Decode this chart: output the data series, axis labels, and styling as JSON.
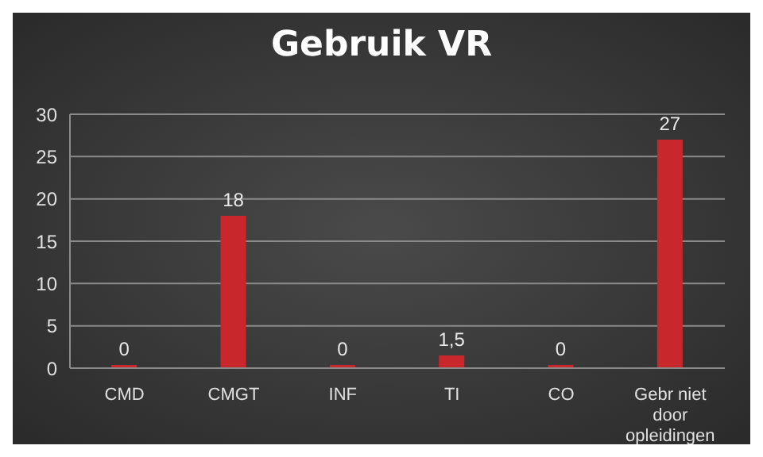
{
  "chart_data": {
    "type": "bar",
    "title": "Gebruik VR",
    "categories": [
      "CMD",
      "CMGT",
      "INF",
      "TI",
      "CO",
      "Gebr niet door opleidingen"
    ],
    "values": [
      0,
      18,
      0,
      1.5,
      0,
      27
    ],
    "value_labels": [
      "0",
      "18",
      "0",
      "1,5",
      "0",
      "27"
    ],
    "color": "#c8282c",
    "ylim": [
      0,
      30
    ],
    "yticks": [
      0,
      5,
      10,
      15,
      20,
      25,
      30
    ],
    "grid": "y",
    "legend": false
  }
}
